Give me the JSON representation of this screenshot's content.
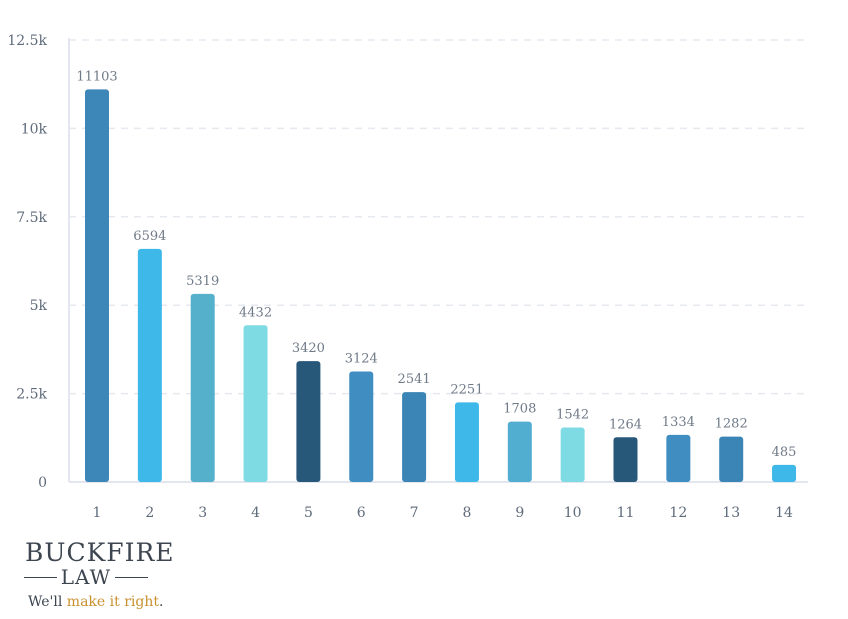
{
  "chart_data": {
    "type": "bar",
    "categories": [
      "1",
      "2",
      "3",
      "4",
      "5",
      "6",
      "7",
      "8",
      "9",
      "10",
      "11",
      "12",
      "13",
      "14"
    ],
    "values": [
      11103,
      6594,
      5319,
      4432,
      3420,
      3124,
      2541,
      2251,
      1708,
      1542,
      1264,
      1334,
      1282,
      485
    ],
    "data_labels": [
      "11103",
      "6594",
      "5319",
      "4432",
      "3420",
      "3124",
      "2541",
      "2251",
      "1708",
      "1542",
      "1264",
      "1334",
      "1282",
      "485"
    ],
    "ylim": [
      0,
      12500
    ],
    "yticks": [
      0,
      2500,
      5000,
      7500,
      10000,
      12500
    ],
    "ytick_labels": [
      "0",
      "2.5k",
      "5k",
      "7.5k",
      "10k",
      "12.5k"
    ],
    "grid": true,
    "colors": [
      "#3d87b8",
      "#3db8e8",
      "#55b0cc",
      "#7fdbe3",
      "#27587a",
      "#408dc2",
      "#3a85b5",
      "#3db8e8",
      "#51aed0",
      "#7fdbe3",
      "#27587a",
      "#408dc2",
      "#3a85b5",
      "#3db8e8"
    ],
    "title": "",
    "xlabel": "",
    "ylabel": ""
  },
  "logo": {
    "top": "BUCKFIRE",
    "law": "LAW",
    "tag_start": "We'll ",
    "tag_accent": "make it right",
    "tag_end": "."
  }
}
